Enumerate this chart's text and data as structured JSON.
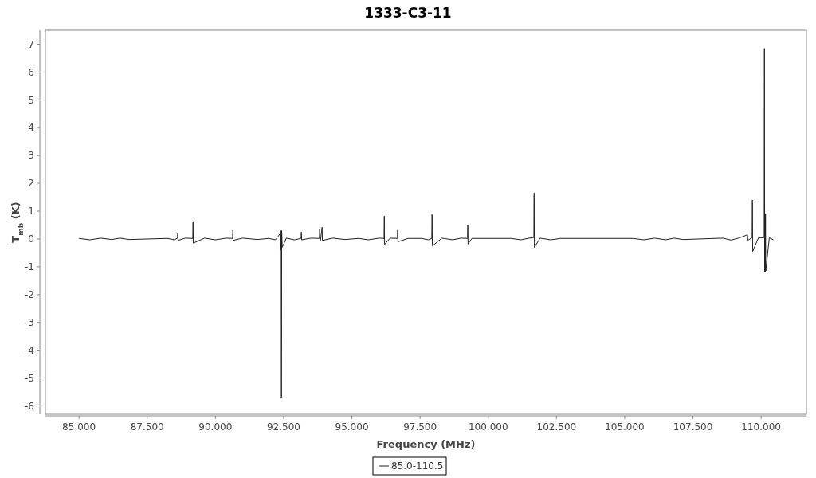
{
  "chart_data": {
    "type": "line",
    "title": "1333-C3-11",
    "xlabel": "Frequency (MHz)",
    "ylabel": "T$_{mb}$ (K)",
    "x": [
      85.0,
      85.4,
      85.8,
      86.2,
      86.5,
      86.84,
      88.24,
      88.5,
      88.61,
      88.62,
      88.63,
      88.9,
      89.17,
      89.18,
      89.19,
      89.6,
      90.0,
      90.4,
      90.63,
      90.64,
      90.65,
      91.0,
      91.54,
      91.95,
      92.2,
      92.38,
      92.4,
      92.41,
      92.42,
      92.43,
      92.45,
      92.6,
      92.9,
      93.14,
      93.15,
      93.16,
      93.5,
      93.81,
      93.82,
      93.85,
      93.91,
      93.92,
      94.3,
      94.75,
      95.25,
      95.6,
      96.0,
      96.18,
      96.19,
      96.2,
      96.4,
      96.67,
      96.68,
      96.69,
      97.06,
      97.56,
      97.8,
      97.93,
      97.94,
      97.95,
      98.3,
      98.7,
      99.0,
      99.24,
      99.25,
      99.26,
      99.4,
      100.83,
      101.2,
      101.5,
      101.67,
      101.68,
      101.69,
      101.9,
      102.3,
      102.64,
      105.3,
      105.7,
      106.1,
      106.5,
      106.8,
      107.14,
      108.6,
      108.9,
      109.2,
      109.5,
      109.51,
      109.67,
      109.68,
      109.69,
      109.9,
      110.11,
      110.12,
      110.13,
      110.14,
      110.15,
      110.16,
      110.17,
      110.3,
      110.45
    ],
    "series": [
      {
        "name": "85.0-110.5",
        "color": "#222222",
        "values": [
          0.02,
          -0.03,
          0.03,
          -0.02,
          0.03,
          -0.02,
          0.02,
          -0.03,
          0.03,
          0.2,
          -0.05,
          0.03,
          0.02,
          0.6,
          -0.15,
          0.03,
          -0.03,
          0.03,
          0.02,
          0.32,
          -0.05,
          0.03,
          -0.02,
          0.02,
          -0.03,
          0.2,
          -0.4,
          0.3,
          -5.7,
          0.3,
          -0.3,
          0.03,
          -0.03,
          0.02,
          0.25,
          -0.03,
          0.03,
          0.02,
          0.35,
          -0.05,
          0.42,
          -0.05,
          0.03,
          -0.02,
          0.02,
          -0.03,
          0.03,
          0.02,
          0.82,
          -0.2,
          0.03,
          0.02,
          0.32,
          -0.1,
          0.02,
          0.02,
          -0.03,
          0.02,
          0.88,
          -0.25,
          0.03,
          -0.03,
          0.03,
          0.02,
          0.5,
          -0.18,
          0.02,
          0.02,
          -0.03,
          0.03,
          0.05,
          1.65,
          -0.3,
          0.03,
          -0.03,
          0.02,
          0.02,
          -0.03,
          0.03,
          -0.03,
          0.03,
          -0.02,
          0.03,
          -0.04,
          0.04,
          0.15,
          -0.05,
          0.05,
          1.4,
          -0.45,
          0.04,
          0.05,
          6.85,
          -1.2,
          0.9,
          -1.2,
          0.9,
          -1.15,
          0.04,
          -0.03
        ]
      }
    ],
    "xlim": [
      83.77,
      111.66
    ],
    "ylim": [
      -6.3,
      7.5
    ],
    "xticks": [
      {
        "value": 85,
        "label": "85.000"
      },
      {
        "value": 87.5,
        "label": "87.500"
      },
      {
        "value": 90,
        "label": "90.000"
      },
      {
        "value": 92.5,
        "label": "92.500"
      },
      {
        "value": 95,
        "label": "95.000"
      },
      {
        "value": 97.5,
        "label": "97.500"
      },
      {
        "value": 100,
        "label": "100.000"
      },
      {
        "value": 102.5,
        "label": "102.500"
      },
      {
        "value": 105,
        "label": "105.000"
      },
      {
        "value": 107.5,
        "label": "107.500"
      },
      {
        "value": 110,
        "label": "110.000"
      }
    ],
    "yticks": [
      -6,
      -5,
      -4,
      -3,
      -2,
      -1,
      0,
      1,
      2,
      3,
      4,
      5,
      6,
      7
    ],
    "legend": "bottom",
    "grid": false,
    "marker": "none",
    "line_style": "solid"
  }
}
